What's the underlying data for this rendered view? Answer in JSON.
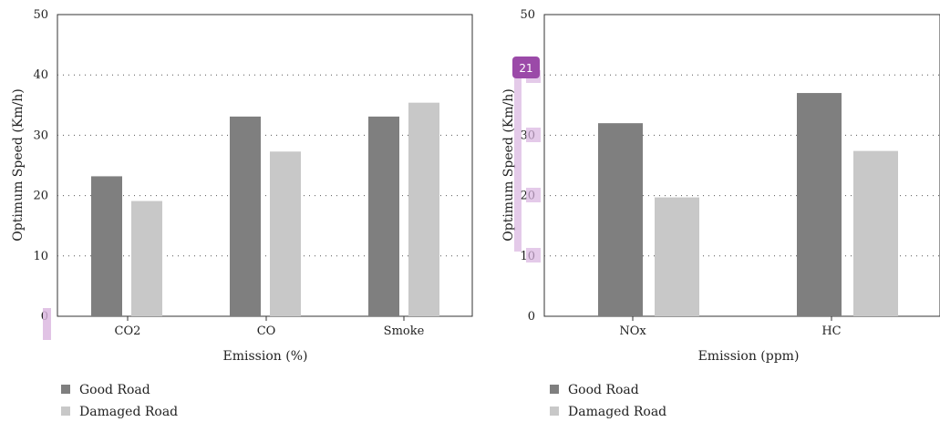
{
  "chart_data": [
    {
      "type": "bar",
      "categories": [
        "CO2",
        "CO",
        "Smoke"
      ],
      "series": [
        {
          "name": "Good Road",
          "color": "#7f7f7f",
          "values": [
            23.2,
            33.1,
            33.1
          ]
        },
        {
          "name": "Damaged Road",
          "color": "#c8c8c8",
          "values": [
            19.1,
            27.3,
            35.4
          ]
        }
      ],
      "xlabel": "Emission (%)",
      "ylabel": "Optimum Speed (Km/h)",
      "ylim": [
        0,
        50
      ],
      "yticks": [
        "0",
        "10",
        "20",
        "30",
        "40",
        "50"
      ],
      "grid": "horizontal-dotted",
      "legend": "bottom-left"
    },
    {
      "type": "bar",
      "categories": [
        "NOx",
        "HC"
      ],
      "series": [
        {
          "name": "Good Road",
          "color": "#7f7f7f",
          "values": [
            32.0,
            37.0
          ]
        },
        {
          "name": "Damaged Road",
          "color": "#c8c8c8",
          "values": [
            19.7,
            27.4
          ]
        }
      ],
      "xlabel": "Emission (ppm)",
      "ylabel": "Optimum Speed (Km/h)",
      "ylim": [
        0,
        50
      ],
      "yticks": [
        "0",
        "10",
        "20",
        "30",
        "40",
        "50"
      ],
      "grid": "horizontal-dotted",
      "legend": "bottom-left"
    }
  ],
  "overlay_badge": {
    "label": "21",
    "color": "#9b4aa8"
  }
}
